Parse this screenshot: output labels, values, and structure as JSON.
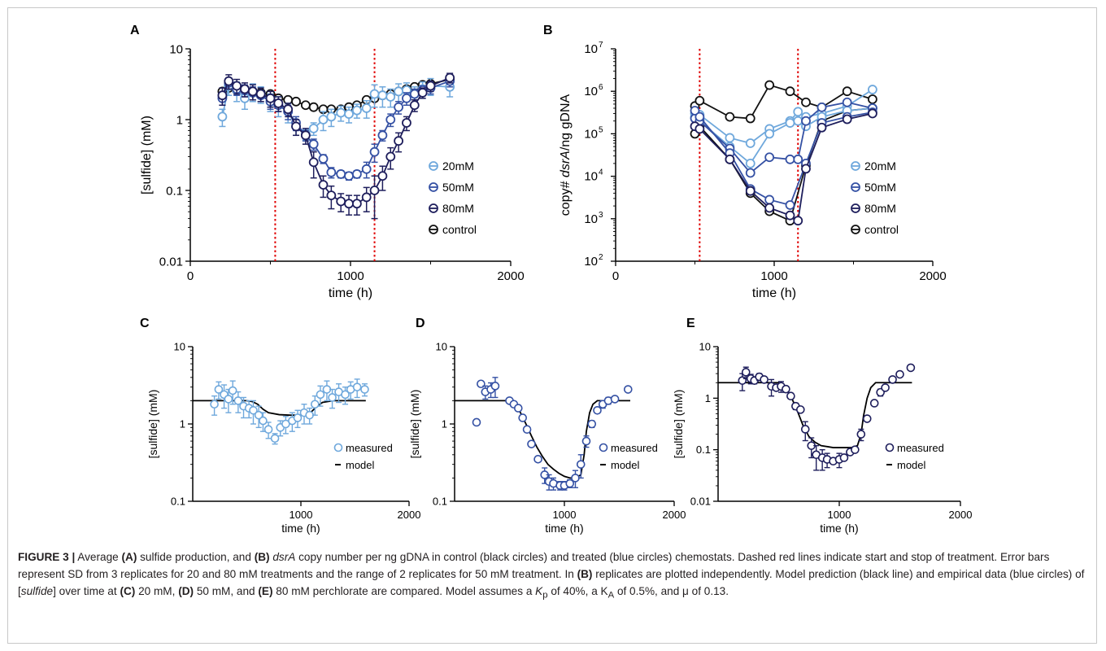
{
  "colors": {
    "c20": "#6fa8dc",
    "c50": "#3551a4",
    "c80": "#1e1e5c",
    "control": "#111111",
    "treat": "#e00000",
    "model": "#000000"
  },
  "caption": {
    "label": "FIGURE 3 |",
    "s1": " Average ",
    "refA": "(A)",
    "s2": " sulfide production, and ",
    "refB": "(B)",
    "s3": " ",
    "dsrA": "dsrA",
    "s4": " copy number per ng gDNA in control (black circles) and treated (blue circles) chemostats. Dashed red lines indicate start and stop of treatment. Error bars represent SD from 3 replicates for 20 and 80 mM treatments and the range of 2 replicates for 50 mM treatment. In ",
    "refB2": "(B)",
    "s5": " replicates are plotted independently. Model prediction (black line) and empirical data (blue circles) of [",
    "sulfide": "sulfide",
    "s6": "] over time at ",
    "refC": "(C)",
    "s7": " 20 mM, ",
    "refD": "(D)",
    "s8": " 50 mM, and ",
    "refE": "(E)",
    "s9": " 80 mM perchlorate are compared. Model assumes a ",
    "kp": "K",
    "kpSub": "p",
    "s10": " of 40%, a K",
    "kaSub": "A",
    "s11": " of 0.5%, and μ of 0.13."
  },
  "chart_data": [
    {
      "panel": "A",
      "type": "line",
      "xlabel": "time (h)",
      "ylabel": "[sulfide] (mM)",
      "xlim": [
        0,
        2000
      ],
      "ylim": [
        0.01,
        10
      ],
      "yscale": "log",
      "xticks": [
        "0",
        "1000",
        "2000"
      ],
      "yticks": [
        "0.01",
        "0.1",
        "1",
        "10"
      ],
      "vlines": [
        530,
        1150
      ],
      "legend_position": "right",
      "series": [
        {
          "name": "control",
          "color": "control",
          "x": [
            200,
            240,
            290,
            340,
            390,
            440,
            500,
            550,
            610,
            660,
            720,
            770,
            830,
            880,
            940,
            990,
            1040,
            1100,
            1150,
            1200,
            1250,
            1300,
            1350,
            1400,
            1450,
            1500,
            1620
          ],
          "y": [
            2.5,
            2.8,
            2.6,
            2.7,
            2.5,
            2.4,
            2.3,
            2.0,
            1.9,
            1.8,
            1.6,
            1.5,
            1.4,
            1.4,
            1.4,
            1.5,
            1.6,
            1.9,
            2.0,
            2.2,
            2.3,
            2.5,
            2.7,
            2.9,
            3.1,
            3.2,
            3.7
          ]
        },
        {
          "name": "20mM",
          "color": "c20",
          "x": [
            200,
            240,
            290,
            340,
            390,
            440,
            500,
            550,
            610,
            660,
            720,
            770,
            830,
            880,
            940,
            990,
            1040,
            1100,
            1150,
            1200,
            1250,
            1300,
            1350,
            1400,
            1450,
            1500,
            1620
          ],
          "y": [
            1.1,
            3.0,
            2.6,
            2.0,
            2.5,
            2.3,
            1.8,
            1.6,
            1.3,
            0.8,
            0.62,
            0.75,
            1.0,
            1.1,
            1.25,
            1.2,
            1.35,
            1.45,
            2.3,
            2.2,
            2.1,
            2.5,
            2.6,
            2.3,
            2.7,
            3.0,
            2.9
          ],
          "err": [
            0.3,
            0.8,
            0.8,
            0.6,
            0.7,
            0.6,
            0.5,
            0.5,
            0.4,
            0.2,
            0.1,
            0.15,
            0.3,
            0.3,
            0.3,
            0.3,
            0.3,
            0.4,
            0.8,
            0.7,
            0.6,
            0.7,
            0.7,
            0.6,
            0.7,
            0.8,
            0.8
          ]
        },
        {
          "name": "50mM",
          "color": "c50",
          "x": [
            200,
            240,
            290,
            340,
            390,
            440,
            500,
            550,
            610,
            660,
            720,
            770,
            830,
            880,
            940,
            990,
            1040,
            1100,
            1150,
            1200,
            1250,
            1300,
            1350,
            1400,
            1450,
            1500,
            1620
          ],
          "y": [
            2.0,
            3.3,
            2.7,
            2.6,
            2.4,
            2.2,
            1.8,
            1.6,
            1.3,
            0.9,
            0.6,
            0.45,
            0.28,
            0.18,
            0.17,
            0.16,
            0.17,
            0.2,
            0.35,
            0.6,
            1.0,
            1.5,
            2.0,
            2.3,
            2.6,
            2.8,
            3.5
          ],
          "err": [
            0.4,
            0.6,
            0.5,
            0.5,
            0.5,
            0.4,
            0.4,
            0.3,
            0.3,
            0.2,
            0.1,
            0.08,
            0.04,
            0.03,
            0.02,
            0.02,
            0.02,
            0.05,
            0.1,
            0.1,
            0.2,
            0.3,
            0.4,
            0.4,
            0.4,
            0.5,
            0.6
          ]
        },
        {
          "name": "80mM",
          "color": "c80",
          "x": [
            200,
            240,
            290,
            340,
            390,
            440,
            500,
            550,
            610,
            660,
            720,
            770,
            830,
            880,
            940,
            990,
            1040,
            1100,
            1150,
            1200,
            1250,
            1300,
            1350,
            1400,
            1450,
            1500,
            1620
          ],
          "y": [
            2.2,
            3.5,
            3.0,
            2.7,
            2.5,
            2.3,
            2.0,
            1.7,
            1.4,
            0.8,
            0.6,
            0.25,
            0.12,
            0.085,
            0.07,
            0.065,
            0.065,
            0.08,
            0.1,
            0.16,
            0.3,
            0.5,
            0.9,
            1.6,
            2.4,
            3.0,
            3.9
          ],
          "err": [
            0.6,
            0.8,
            0.7,
            0.6,
            0.6,
            0.5,
            0.5,
            0.4,
            0.3,
            0.2,
            0.15,
            0.1,
            0.04,
            0.03,
            0.02,
            0.02,
            0.02,
            0.03,
            0.06,
            0.06,
            0.1,
            0.15,
            0.2,
            0.3,
            0.4,
            0.5,
            0.6
          ]
        }
      ]
    },
    {
      "panel": "B",
      "type": "line",
      "xlabel": "time (h)",
      "ylabel_parts": [
        "copy# ",
        "dsrA",
        "/ng gDNA"
      ],
      "xlim": [
        0,
        2000
      ],
      "ylim": [
        100,
        10000000
      ],
      "yscale": "log",
      "xticks": [
        "0",
        "1000",
        "2000"
      ],
      "ytick_exponents": [
        "2",
        "3",
        "4",
        "5",
        "6",
        "7"
      ],
      "vlines": [
        530,
        1150
      ],
      "legend_position": "right",
      "series": [
        {
          "name": "control",
          "color": "control",
          "x": [
            500,
            530,
            720,
            850,
            970,
            1100,
            1200,
            1300,
            1460,
            1620
          ],
          "y": [
            450000,
            600000,
            250000,
            230000,
            1400000,
            1000000,
            550000,
            420000,
            1000000,
            650000
          ]
        },
        {
          "name": "control-rep",
          "color": "control",
          "x": [
            500,
            530,
            720,
            850,
            970,
            1100,
            1200,
            1300,
            1460,
            1620
          ],
          "y": [
            100000,
            150000,
            25000,
            4000,
            1500,
            900,
            18000,
            200000,
            350000,
            400000
          ]
        },
        {
          "name": "20mM",
          "color": "c20",
          "x": [
            500,
            530,
            720,
            850,
            970,
            1100,
            1150,
            1200,
            1300,
            1460,
            1620
          ],
          "y": [
            300000,
            280000,
            80000,
            60000,
            130000,
            200000,
            330000,
            250000,
            300000,
            450000,
            1100000
          ]
        },
        {
          "name": "20mM-rep",
          "color": "c20",
          "x": [
            500,
            530,
            720,
            850,
            970,
            1100,
            1150,
            1200,
            1300,
            1460,
            1620
          ],
          "y": [
            250000,
            200000,
            50000,
            20000,
            100000,
            180000,
            200000,
            150000,
            250000,
            350000,
            400000
          ]
        },
        {
          "name": "50mM",
          "color": "c50",
          "x": [
            500,
            530,
            720,
            850,
            970,
            1100,
            1150,
            1200,
            1300,
            1460,
            1620
          ],
          "y": [
            230000,
            200000,
            45000,
            12000,
            28000,
            25000,
            25000,
            200000,
            420000,
            550000,
            400000
          ]
        },
        {
          "name": "50mM-rep",
          "color": "c50",
          "x": [
            500,
            530,
            720,
            850,
            970,
            1100,
            1200,
            1300,
            1460,
            1620
          ],
          "y": [
            350000,
            250000,
            35000,
            5000,
            2800,
            2100,
            20000,
            180000,
            250000,
            320000
          ]
        },
        {
          "name": "80mM",
          "color": "c80",
          "x": [
            500,
            530,
            720,
            850,
            970,
            1100,
            1150,
            1200,
            1300,
            1460,
            1620
          ],
          "y": [
            150000,
            130000,
            25000,
            4500,
            1800,
            1200,
            900,
            15000,
            140000,
            220000,
            300000
          ]
        }
      ]
    },
    {
      "panel": "C",
      "type": "scatter",
      "xlabel": "time (h)",
      "ylabel": "[sulfide] (mM)",
      "xlim": [
        0,
        2000
      ],
      "ylim": [
        0.1,
        10
      ],
      "yscale": "log",
      "xticks": [
        "1000",
        "2000"
      ],
      "yticks": [
        "0.1",
        "1",
        "10"
      ],
      "legend": [
        "measured",
        "model"
      ],
      "legend_position": "bottom-right",
      "measured": {
        "color": "c20",
        "x": [
          200,
          240,
          290,
          330,
          370,
          420,
          470,
          520,
          560,
          610,
          650,
          700,
          760,
          810,
          860,
          920,
          970,
          1030,
          1080,
          1130,
          1180,
          1240,
          1290,
          1350,
          1410,
          1460,
          1520,
          1590
        ],
        "y": [
          1.8,
          2.8,
          2.4,
          2.1,
          2.7,
          2.0,
          1.7,
          1.6,
          1.5,
          1.3,
          1.1,
          0.85,
          0.65,
          0.9,
          1.0,
          1.1,
          1.2,
          1.4,
          1.3,
          1.8,
          2.4,
          2.8,
          2.2,
          2.6,
          2.4,
          2.8,
          3.0,
          2.8
        ],
        "err": [
          0.5,
          0.7,
          0.8,
          0.7,
          0.9,
          0.6,
          0.5,
          0.4,
          0.5,
          0.4,
          0.3,
          0.2,
          0.1,
          0.2,
          0.25,
          0.3,
          0.3,
          0.4,
          0.3,
          0.5,
          0.7,
          0.8,
          0.6,
          0.7,
          0.6,
          0.7,
          0.8,
          0.5
        ]
      },
      "model": {
        "x": [
          0,
          200,
          500,
          550,
          600,
          650,
          700,
          800,
          900,
          1000,
          1050,
          1100,
          1150,
          1200,
          1300,
          1600
        ],
        "y": [
          2.0,
          2.0,
          2.0,
          1.95,
          1.8,
          1.55,
          1.4,
          1.32,
          1.3,
          1.3,
          1.32,
          1.45,
          1.7,
          1.9,
          2.0,
          2.0
        ]
      }
    },
    {
      "panel": "D",
      "type": "scatter",
      "xlabel": "time (h)",
      "ylabel": "[sulfide] (mM)",
      "xlim": [
        0,
        2000
      ],
      "ylim": [
        0.1,
        10
      ],
      "yscale": "log",
      "xticks": [
        "1000",
        "2000"
      ],
      "yticks": [
        "0.1",
        "1",
        "10"
      ],
      "legend": [
        "measured",
        "model"
      ],
      "legend_position": "bottom-right",
      "measured": {
        "color": "c50",
        "x": [
          200,
          240,
          280,
          330,
          370,
          500,
          540,
          580,
          620,
          660,
          700,
          760,
          820,
          860,
          900,
          960,
          1000,
          1050,
          1100,
          1150,
          1200,
          1250,
          1300,
          1350,
          1400,
          1460,
          1580
        ],
        "y": [
          1.05,
          3.3,
          2.6,
          2.8,
          3.1,
          2.0,
          1.8,
          1.6,
          1.2,
          0.85,
          0.55,
          0.35,
          0.22,
          0.18,
          0.17,
          0.16,
          0.16,
          0.17,
          0.2,
          0.3,
          0.6,
          1.0,
          1.5,
          1.8,
          2.0,
          2.1,
          2.8
        ],
        "err": [
          0,
          0,
          0.5,
          0.6,
          0.9,
          0,
          0,
          0,
          0,
          0,
          0,
          0,
          0.05,
          0.04,
          0.03,
          0.02,
          0.02,
          0.02,
          0.05,
          0.1,
          0.1,
          0.1,
          0,
          0.2,
          0.2,
          0,
          0
        ]
      },
      "model": {
        "x": [
          0,
          200,
          500,
          550,
          600,
          650,
          700,
          750,
          800,
          850,
          900,
          950,
          1000,
          1050,
          1100,
          1150,
          1180,
          1200,
          1230,
          1260,
          1300,
          1600
        ],
        "y": [
          2.0,
          2.0,
          2.0,
          1.8,
          1.4,
          1.0,
          0.7,
          0.5,
          0.38,
          0.3,
          0.26,
          0.23,
          0.21,
          0.2,
          0.2,
          0.22,
          0.4,
          0.8,
          1.4,
          1.8,
          2.0,
          2.0
        ]
      }
    },
    {
      "panel": "E",
      "type": "scatter",
      "xlabel": "time (h)",
      "ylabel": "[sulfide] (mM)",
      "xlim": [
        0,
        2000
      ],
      "ylim": [
        0.01,
        10
      ],
      "yscale": "log",
      "xticks": [
        "1000",
        "2000"
      ],
      "yticks": [
        "0.01",
        "0.1",
        "1",
        "10"
      ],
      "legend": [
        "measured",
        "model"
      ],
      "legend_position": "bottom-right",
      "measured": {
        "color": "c80",
        "x": [
          200,
          230,
          270,
          300,
          340,
          380,
          440,
          480,
          520,
          560,
          600,
          640,
          680,
          720,
          770,
          810,
          860,
          900,
          950,
          1000,
          1040,
          1090,
          1130,
          1180,
          1230,
          1290,
          1340,
          1380,
          1440,
          1500,
          1590
        ],
        "y": [
          2.2,
          3.2,
          2.4,
          2.2,
          2.6,
          2.3,
          1.7,
          1.6,
          1.7,
          1.5,
          1.1,
          0.7,
          0.6,
          0.25,
          0.12,
          0.08,
          0.07,
          0.065,
          0.06,
          0.065,
          0.07,
          0.09,
          0.1,
          0.2,
          0.4,
          0.8,
          1.3,
          1.6,
          2.3,
          2.9,
          3.9
        ],
        "err": [
          0.8,
          0.8,
          0.5,
          0.3,
          0.4,
          0,
          0.6,
          0,
          0.4,
          0,
          0,
          0.1,
          0,
          0.1,
          0.05,
          0.04,
          0.03,
          0.02,
          0,
          0.02,
          0,
          0,
          0,
          0.05,
          0,
          0,
          0.2,
          0,
          0,
          0,
          0.3
        ]
      },
      "model": {
        "x": [
          0,
          200,
          500,
          550,
          600,
          650,
          700,
          750,
          800,
          850,
          900,
          950,
          1000,
          1100,
          1150,
          1180,
          1200,
          1230,
          1260,
          1300,
          1600
        ],
        "y": [
          2.0,
          2.0,
          2.0,
          1.7,
          1.1,
          0.6,
          0.3,
          0.18,
          0.14,
          0.12,
          0.115,
          0.11,
          0.11,
          0.11,
          0.12,
          0.2,
          0.45,
          1.0,
          1.6,
          2.0,
          2.0
        ]
      }
    }
  ]
}
